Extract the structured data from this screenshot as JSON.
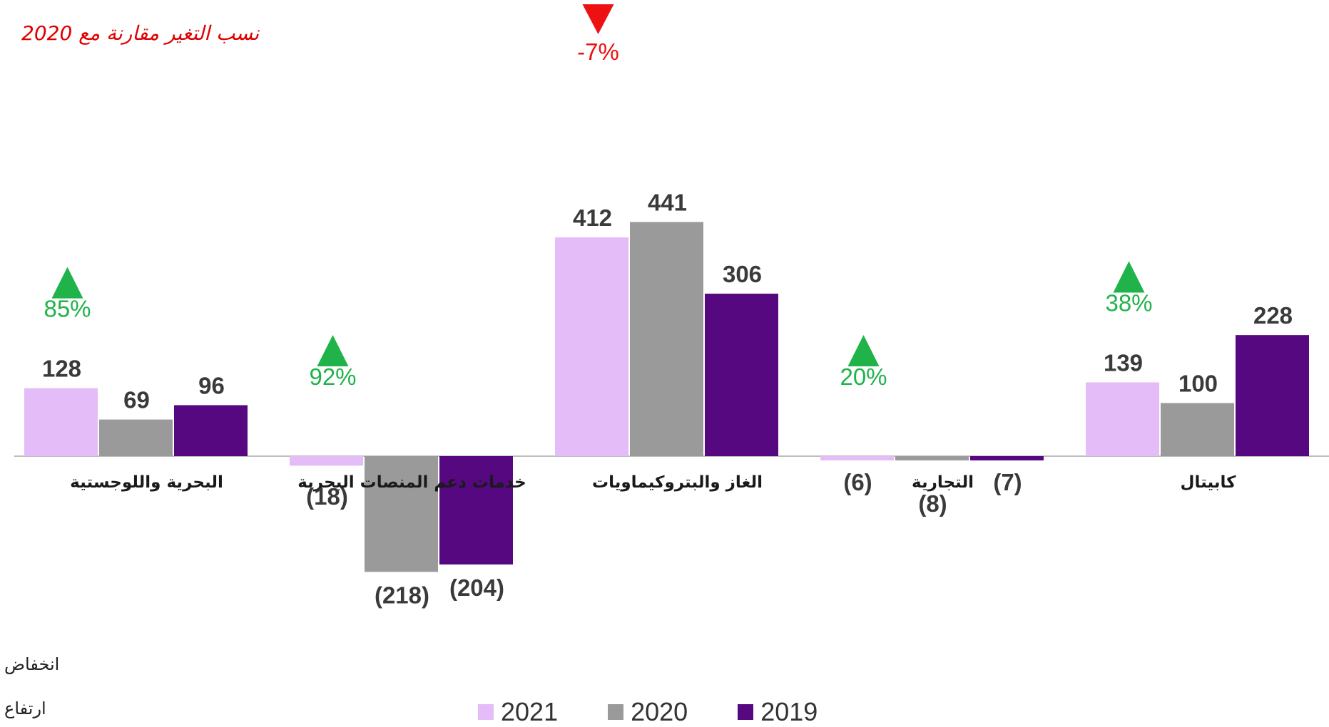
{
  "note": "نسب التغير مقارنة مع 2020",
  "legend_keys": {
    "down": "انخفاض",
    "up": "ارتفاع"
  },
  "colors": {
    "2021": "#e4bcf7",
    "2020": "#9a9a9a",
    "2019": "#55087f",
    "up": "#1fb34a",
    "down": "#ee1111"
  },
  "chart_data": {
    "type": "bar",
    "categories": [
      "البحرية واللوجستية",
      "خدمات دعم المنصات البحرية",
      "الغاز والبتروكيماويات",
      "التجارية",
      "كابيتال"
    ],
    "series": [
      {
        "name": "2021",
        "values": [
          128,
          -18,
          412,
          -6,
          139
        ],
        "labels": [
          "128",
          "(18)",
          "412",
          "(6)",
          "139"
        ]
      },
      {
        "name": "2020",
        "values": [
          69,
          -218,
          441,
          -8,
          100
        ],
        "labels": [
          "69",
          "(218)",
          "441",
          "(8)",
          "100"
        ]
      },
      {
        "name": "2019",
        "values": [
          96,
          -204,
          306,
          -7,
          228
        ],
        "labels": [
          "96",
          "(204)",
          "306",
          "(7)",
          "228"
        ]
      }
    ],
    "change_vs_2020": [
      {
        "category": "البحرية واللوجستية",
        "label": "85%",
        "direction": "up"
      },
      {
        "category": "خدمات دعم المنصات البحرية",
        "label": "92%",
        "direction": "up"
      },
      {
        "category": "الغاز والبتروكيماويات",
        "label": "-7%",
        "direction": "down"
      },
      {
        "category": "التجارية",
        "label": "20%",
        "direction": "up"
      },
      {
        "category": "كابيتال",
        "label": "38%",
        "direction": "up"
      }
    ],
    "legend": [
      "2021",
      "2020",
      "2019"
    ],
    "grid": false
  }
}
